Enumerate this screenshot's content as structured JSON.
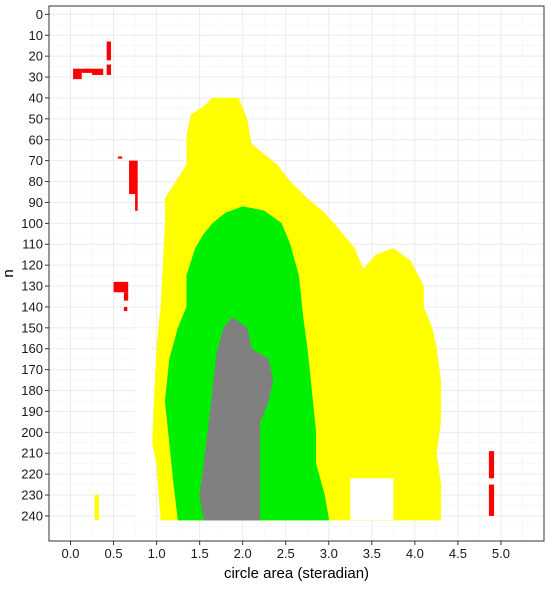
{
  "chart_data": {
    "type": "heatmap",
    "title": "",
    "xlabel": "circle area (steradian)",
    "ylabel": "n",
    "xlim": [
      -0.25,
      5.5
    ],
    "ylim": [
      -4,
      252
    ],
    "y_reversed": true,
    "x_ticks": [
      0.0,
      0.5,
      1.0,
      1.5,
      2.0,
      2.5,
      3.0,
      3.5,
      4.0,
      4.5,
      5.0
    ],
    "x_tick_labels": [
      "0.0",
      "0.5",
      "1.0",
      "1.5",
      "2.0",
      "2.5",
      "3.0",
      "3.5",
      "4.0",
      "4.5",
      "5.0"
    ],
    "y_ticks": [
      0,
      10,
      20,
      30,
      40,
      50,
      60,
      70,
      80,
      90,
      100,
      110,
      120,
      130,
      140,
      150,
      160,
      170,
      180,
      190,
      200,
      210,
      220,
      230,
      240
    ],
    "y_tick_labels": [
      "0",
      "10",
      "20",
      "30",
      "40",
      "50",
      "60",
      "70",
      "80",
      "90",
      "100",
      "110",
      "120",
      "130",
      "140",
      "150",
      "160",
      "170",
      "180",
      "190",
      "200",
      "210",
      "220",
      "230",
      "240"
    ],
    "grid": true,
    "legend": "none",
    "colors": {
      "red": "#ff0000",
      "yellow": "#ffff00",
      "green": "#00ee00",
      "gray": "#808080",
      "panel_border": "#333333",
      "grid_major": "#ebebeb"
    },
    "regions": [
      {
        "color": "yellow",
        "outline": [
          [
            1.05,
            242
          ],
          [
            1.0,
            215
          ],
          [
            0.95,
            205
          ],
          [
            1.0,
            160
          ],
          [
            1.05,
            140
          ],
          [
            1.1,
            100
          ],
          [
            1.1,
            88
          ],
          [
            1.35,
            72
          ],
          [
            1.35,
            58
          ],
          [
            1.4,
            48
          ],
          [
            1.55,
            44
          ],
          [
            1.65,
            40
          ],
          [
            1.95,
            40
          ],
          [
            2.05,
            50
          ],
          [
            2.1,
            62
          ],
          [
            2.4,
            72
          ],
          [
            2.55,
            80
          ],
          [
            2.75,
            88
          ],
          [
            2.95,
            95
          ],
          [
            3.1,
            102
          ],
          [
            3.3,
            112
          ],
          [
            3.4,
            122
          ],
          [
            3.55,
            115
          ],
          [
            3.75,
            112
          ],
          [
            3.95,
            118
          ],
          [
            4.1,
            130
          ],
          [
            4.1,
            140
          ],
          [
            4.2,
            150
          ],
          [
            4.25,
            160
          ],
          [
            4.3,
            175
          ],
          [
            4.3,
            195
          ],
          [
            4.25,
            210
          ],
          [
            4.3,
            225
          ],
          [
            4.3,
            242
          ]
        ]
      },
      {
        "color": "green",
        "outline": [
          [
            1.25,
            242
          ],
          [
            1.2,
            225
          ],
          [
            1.15,
            205
          ],
          [
            1.1,
            185
          ],
          [
            1.15,
            165
          ],
          [
            1.25,
            150
          ],
          [
            1.35,
            140
          ],
          [
            1.35,
            125
          ],
          [
            1.45,
            112
          ],
          [
            1.55,
            105
          ],
          [
            1.65,
            100
          ],
          [
            1.8,
            95
          ],
          [
            2.0,
            92
          ],
          [
            2.25,
            94
          ],
          [
            2.45,
            100
          ],
          [
            2.55,
            110
          ],
          [
            2.65,
            125
          ],
          [
            2.7,
            145
          ],
          [
            2.75,
            160
          ],
          [
            2.8,
            180
          ],
          [
            2.85,
            200
          ],
          [
            2.85,
            215
          ],
          [
            2.95,
            230
          ],
          [
            3.0,
            242
          ]
        ]
      },
      {
        "color": "gray",
        "outline": [
          [
            1.55,
            242
          ],
          [
            1.5,
            230
          ],
          [
            1.55,
            215
          ],
          [
            1.6,
            198
          ],
          [
            1.65,
            180
          ],
          [
            1.7,
            162
          ],
          [
            1.78,
            150
          ],
          [
            1.88,
            145
          ],
          [
            2.05,
            150
          ],
          [
            2.1,
            160
          ],
          [
            2.3,
            165
          ],
          [
            2.35,
            175
          ],
          [
            2.3,
            185
          ],
          [
            2.2,
            195
          ],
          [
            2.2,
            215
          ],
          [
            2.2,
            242
          ]
        ]
      }
    ],
    "cutouts": [
      {
        "x0": 3.25,
        "x1": 3.75,
        "y0": 222,
        "y1": 242
      },
      {
        "x0": 0.75,
        "x1": 0.95,
        "y0": 150,
        "y1": 242
      }
    ],
    "small_cells": [
      {
        "color": "red",
        "x0": 0.03,
        "x1": 0.13,
        "y0": 26,
        "y1": 31
      },
      {
        "color": "red",
        "x0": 0.13,
        "x1": 0.25,
        "y0": 26,
        "y1": 28
      },
      {
        "color": "red",
        "x0": 0.25,
        "x1": 0.38,
        "y0": 26,
        "y1": 29
      },
      {
        "color": "red",
        "x0": 0.42,
        "x1": 0.47,
        "y0": 24,
        "y1": 29
      },
      {
        "color": "red",
        "x0": 0.42,
        "x1": 0.47,
        "y0": 13,
        "y1": 22
      },
      {
        "color": "red",
        "x0": 0.55,
        "x1": 0.6,
        "y0": 68,
        "y1": 69
      },
      {
        "color": "red",
        "x0": 0.68,
        "x1": 0.78,
        "y0": 70,
        "y1": 86
      },
      {
        "color": "red",
        "x0": 0.75,
        "x1": 0.78,
        "y0": 86,
        "y1": 94
      },
      {
        "color": "red",
        "x0": 0.5,
        "x1": 0.67,
        "y0": 128,
        "y1": 133
      },
      {
        "color": "red",
        "x0": 0.62,
        "x1": 0.67,
        "y0": 133,
        "y1": 137
      },
      {
        "color": "red",
        "x0": 0.62,
        "x1": 0.66,
        "y0": 140,
        "y1": 142
      },
      {
        "color": "red",
        "x0": 4.86,
        "x1": 4.92,
        "y0": 209,
        "y1": 222
      },
      {
        "color": "red",
        "x0": 4.86,
        "x1": 4.92,
        "y0": 225,
        "y1": 240
      },
      {
        "color": "yellow",
        "x0": 0.28,
        "x1": 0.33,
        "y0": 230,
        "y1": 242
      },
      {
        "color": "yellow",
        "x0": 3.05,
        "x1": 3.2,
        "y0": 165,
        "y1": 175
      },
      {
        "color": "yellow",
        "x0": 1.6,
        "x1": 1.7,
        "y0": 50,
        "y1": 53
      }
    ]
  }
}
